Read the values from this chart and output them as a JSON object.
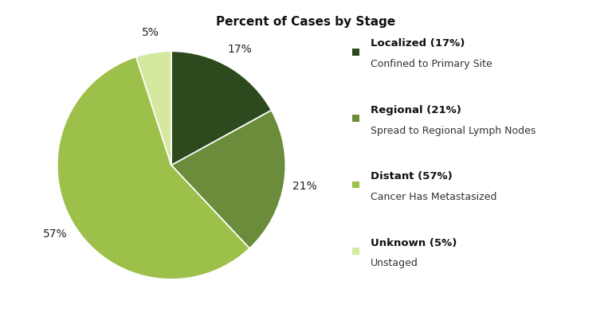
{
  "title": "Percent of Cases by Stage",
  "slices": [
    17,
    21,
    57,
    5
  ],
  "colors": [
    "#2d4a1e",
    "#6b8c3a",
    "#9dc04a",
    "#d4e8a0"
  ],
  "labels": [
    "17%",
    "21%",
    "57%",
    "5%"
  ],
  "legend_entries": [
    {
      "bold": "Localized (17%)",
      "sub": "Confined to Primary Site"
    },
    {
      "bold": "Regional (21%)",
      "sub": "Spread to Regional Lymph Nodes"
    },
    {
      "bold": "Distant (57%)",
      "sub": "Cancer Has Metastasized"
    },
    {
      "bold": "Unknown (5%)",
      "sub": "Unstaged"
    }
  ],
  "background_color": "#ffffff",
  "title_fontsize": 11,
  "label_fontsize": 10,
  "legend_bold_fontsize": 9.5,
  "legend_sub_fontsize": 9,
  "startangle": 90
}
